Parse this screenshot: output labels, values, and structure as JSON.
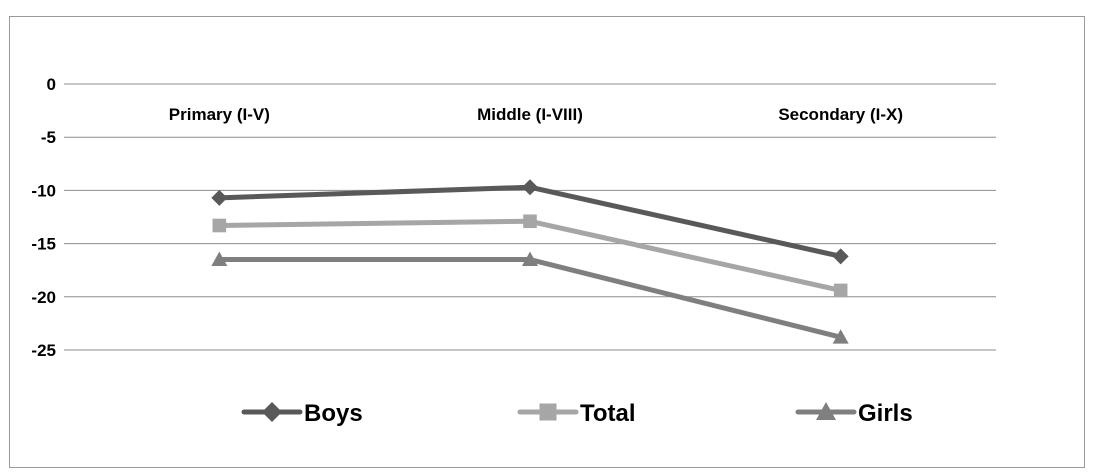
{
  "chart_data": {
    "type": "line",
    "categories": [
      "Primary (I-V)",
      "Middle (I-VIII)",
      "Secondary (I-X)"
    ],
    "series": [
      {
        "name": "Boys",
        "values": [
          -10.7,
          -9.7,
          -16.2
        ],
        "color": "#595959",
        "marker": "diamond"
      },
      {
        "name": "Total",
        "values": [
          -13.3,
          -12.9,
          -19.4
        ],
        "color": "#a6a6a6",
        "marker": "square"
      },
      {
        "name": "Girls",
        "values": [
          -16.5,
          -16.5,
          -23.8
        ],
        "color": "#7f7f7f",
        "marker": "triangle"
      }
    ],
    "ylim": [
      -25,
      0
    ],
    "yticks": [
      0,
      -5,
      -10,
      -15,
      -20,
      -25
    ],
    "grid": true,
    "legend": "bottom",
    "title": "",
    "xlabel": "",
    "ylabel": ""
  }
}
